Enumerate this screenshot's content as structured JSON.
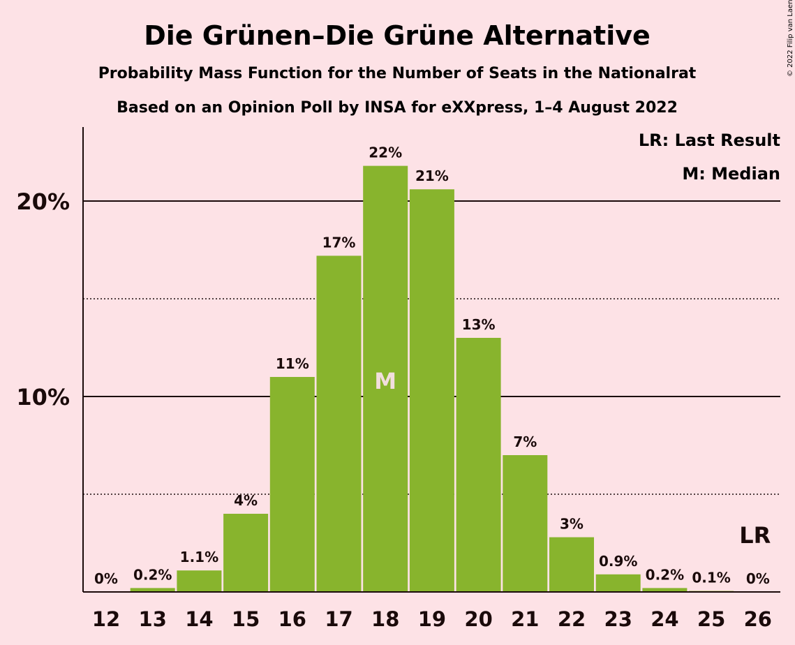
{
  "colors": {
    "background": "#fde2e6",
    "bar": "#88b42d",
    "text": "#1a0a0a",
    "median_label": "#f2dede"
  },
  "header": {
    "title": "Die Grünen–Die Grüne Alternative",
    "subtitle1": "Probability Mass Function for the Number of Seats in the Nationalrat",
    "subtitle2": "Based on an Opinion Poll by INSA for eXXpress, 1–4 August 2022",
    "copyright": "© 2022 Filip van Laenen"
  },
  "legend": {
    "last_result": "LR: Last Result",
    "median": "M: Median"
  },
  "chart_data": {
    "type": "bar",
    "categories": [
      "12",
      "13",
      "14",
      "15",
      "16",
      "17",
      "18",
      "19",
      "20",
      "21",
      "22",
      "23",
      "24",
      "25",
      "26"
    ],
    "values": [
      0,
      0.2,
      1.1,
      4,
      11,
      17.2,
      21.8,
      20.6,
      13,
      7,
      2.8,
      0.9,
      0.2,
      0.05,
      0
    ],
    "data_labels": [
      "0%",
      "0.2%",
      "1.1%",
      "4%",
      "11%",
      "17%",
      "22%",
      "21%",
      "13%",
      "7%",
      "3%",
      "0.9%",
      "0.2%",
      "0.1%",
      "0%"
    ],
    "yticks": [
      {
        "value": 10,
        "label": "10%"
      },
      {
        "value": 20,
        "label": "20%"
      }
    ],
    "minor_gridlines": [
      5,
      15
    ],
    "ylim": [
      0,
      23.8
    ],
    "median_category": "18",
    "median_marker": "M",
    "last_result_category": "26",
    "last_result_marker": "LR",
    "legend_position": "top-right"
  }
}
